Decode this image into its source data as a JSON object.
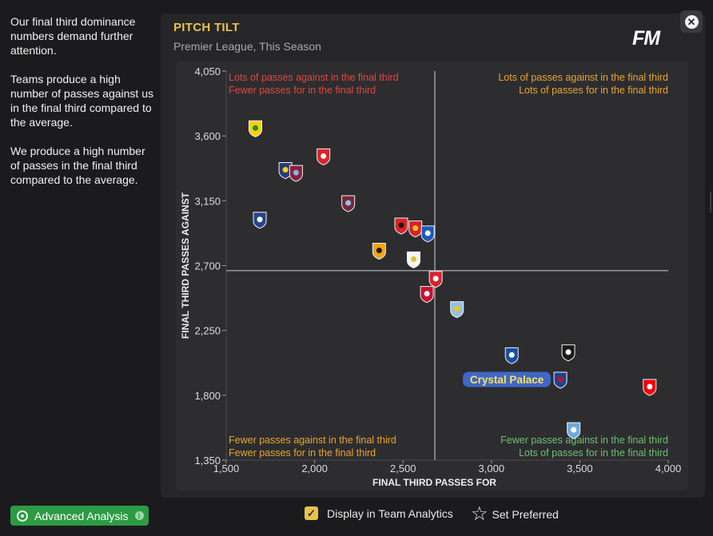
{
  "sidebar": {
    "paragraphs": [
      "Our final third dominance numbers demand further attention.",
      "Teams produce a high number of passes against us in the final third compared to the average.",
      "We produce a high number of passes in the final third compared to the average."
    ]
  },
  "panel": {
    "title": "PITCH TILT",
    "subtitle": "Premier League, This Season",
    "logo": "FM",
    "close_icon": "close-icon"
  },
  "chart_data": {
    "type": "scatter",
    "title": "PITCH TILT",
    "subtitle": "Premier League, This Season",
    "xlabel": "FINAL THIRD PASSES FOR",
    "ylabel": "FINAL THIRD PASSES AGAINST",
    "xlim": [
      1500,
      4000
    ],
    "ylim": [
      1350,
      4050
    ],
    "xticks": [
      1500,
      2000,
      2500,
      3000,
      3500,
      4000
    ],
    "xtick_labels": [
      "1,500",
      "2,000",
      "2,500",
      "3,000",
      "3,500",
      "4,000"
    ],
    "yticks": [
      1350,
      1800,
      2250,
      2700,
      3150,
      3600,
      4050
    ],
    "ytick_labels": [
      "1,350",
      "1,800",
      "2,250",
      "2,700",
      "3,150",
      "3,600",
      "4,050"
    ],
    "x_average": 2680,
    "y_average": 2665,
    "quadrant_labels": {
      "top_left": [
        "Lots of passes against in the final third",
        "Fewer passes for in the final third"
      ],
      "top_right": [
        "Lots of passes against in the final third",
        "Lots of passes for in the final third"
      ],
      "bottom_left": [
        "Fewer passes against in the final third",
        "Fewer passes for in the final third"
      ],
      "bottom_right": [
        "Fewer passes against in the final third",
        "Lots of passes for in the final third"
      ]
    },
    "quadrant_colors": {
      "top_left": "#e0473e",
      "top_right": "#e8a42e",
      "bottom_left": "#e8a42e",
      "bottom_right": "#6fbf6f"
    },
    "highlight_label": "Crystal Palace",
    "points": [
      {
        "x": 1665,
        "y": 3655,
        "icon": "yellow-green-crest",
        "color": "#f5d20a",
        "color2": "#1f8a3a"
      },
      {
        "x": 1835,
        "y": 3365,
        "icon": "navy-crest",
        "color": "#2a3a7a",
        "color2": "#f5d20a"
      },
      {
        "x": 1895,
        "y": 3345,
        "icon": "claret-crest",
        "color": "#8a1f3a",
        "color2": "#7fb8e0"
      },
      {
        "x": 2050,
        "y": 3460,
        "icon": "red-white-crest",
        "color": "#d8232a",
        "color2": "#ffffff"
      },
      {
        "x": 1690,
        "y": 3020,
        "icon": "blue-crest",
        "color": "#274488",
        "color2": "#ffffff"
      },
      {
        "x": 2190,
        "y": 3135,
        "icon": "claret-blue-crest",
        "color": "#7a2638",
        "color2": "#8ec6e6"
      },
      {
        "x": 2490,
        "y": 2980,
        "icon": "red-black-crest",
        "color": "#d8232a",
        "color2": "#1a1a1a"
      },
      {
        "x": 2570,
        "y": 2960,
        "icon": "red-gold-crest",
        "color": "#d8232a",
        "color2": "#f5c518"
      },
      {
        "x": 2640,
        "y": 2925,
        "icon": "blue-white-crest",
        "color": "#1a5bb8",
        "color2": "#ffffff"
      },
      {
        "x": 2365,
        "y": 2805,
        "icon": "gold-black-crest",
        "color": "#f0a418",
        "color2": "#1a1a1a"
      },
      {
        "x": 2560,
        "y": 2745,
        "icon": "white-yellow-crest",
        "color": "#f4f4f4",
        "color2": "#e0c22a"
      },
      {
        "x": 2685,
        "y": 2610,
        "icon": "red-white-ring-crest",
        "color": "#d8232a",
        "color2": "#ffffff"
      },
      {
        "x": 2635,
        "y": 2505,
        "icon": "red-crest",
        "color": "#c8102e",
        "color2": "#f4f4f4"
      },
      {
        "x": 2805,
        "y": 2400,
        "icon": "claret-gold-crest",
        "color": "#95bfe5",
        "color2": "#f5c518"
      },
      {
        "x": 3115,
        "y": 2080,
        "icon": "royal-blue-crest",
        "color": "#1a4fa0",
        "color2": "#ffffff"
      },
      {
        "x": 3435,
        "y": 2100,
        "icon": "black-white-crest",
        "color": "#1a1a1a",
        "color2": "#ffffff"
      },
      {
        "x": 3390,
        "y": 1910,
        "icon": "red-blue-crest",
        "color": "#1b458f",
        "color2": "#c4122e"
      },
      {
        "x": 3895,
        "y": 1860,
        "icon": "red-cannon-crest",
        "color": "#ef0107",
        "color2": "#ffffff"
      },
      {
        "x": 3465,
        "y": 1560,
        "icon": "sky-blue-crest",
        "color": "#6cabdd",
        "color2": "#ffffff"
      }
    ]
  },
  "bottom": {
    "advanced_analysis_label": "Advanced Analysis",
    "info_icon": "i",
    "display_label": "Display in Team Analytics",
    "check_mark": "✓",
    "preferred_label": "Set Preferred",
    "star_glyph": "☆"
  },
  "colors": {
    "accent_yellow": "#e8c24a",
    "button_green": "#2d9a44",
    "highlight_blue": "#3f67c5",
    "highlight_text": "#ffe15a"
  }
}
